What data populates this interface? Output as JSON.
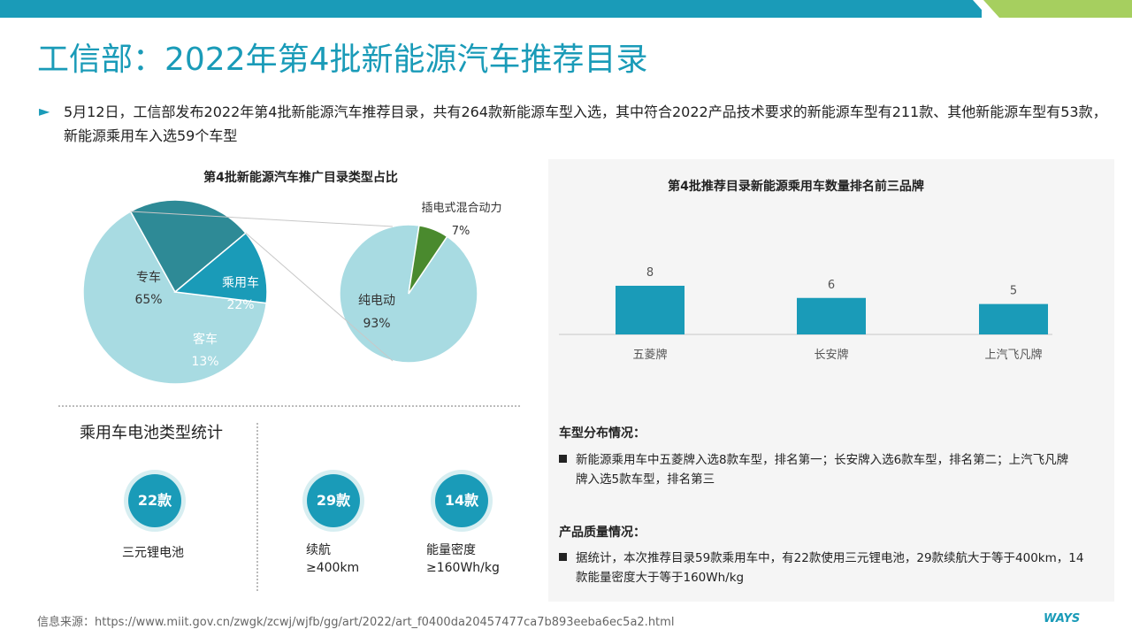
{
  "title": "工信部：2022年第4批新能源汽车推荐目录",
  "intro": "5月12日，工信部发布2022年第4批新能源汽车推荐目录，共有264款新能源车型入选，其中符合2022产品技术要求的新能源车型有211款、其他新能源车型有53款，新能源乘用车入选59个车型",
  "chart_data": [
    {
      "type": "pie",
      "title": "第4批新能源汽车推广目录类型占比",
      "categories": [
        "专车",
        "乘用车",
        "客车"
      ],
      "values": [
        65,
        22,
        13
      ],
      "labels": [
        "65%",
        "22%",
        "13%"
      ],
      "colors": [
        "#a8dbe2",
        "#2e8a96",
        "#1a9bb8"
      ]
    },
    {
      "type": "pie",
      "title": "",
      "categories": [
        "纯电动",
        "插电式混合动力"
      ],
      "values": [
        93,
        7
      ],
      "labels": [
        "93%",
        "7%"
      ],
      "colors": [
        "#a8dbe2",
        "#4a8a2e"
      ]
    },
    {
      "type": "bar",
      "title": "第4批推荐目录新能源乘用车数量排名前三品牌",
      "categories": [
        "五菱牌",
        "长安牌",
        "上汽飞凡牌"
      ],
      "values": [
        8,
        6,
        5
      ],
      "color": "#1a9bb8",
      "ylim": [
        0,
        8
      ]
    }
  ],
  "battery": {
    "title": "乘用车电池类型统计",
    "items": [
      {
        "badge": "22款",
        "line1": "三元锂电池",
        "line2": ""
      },
      {
        "badge": "29款",
        "line1": "续航",
        "line2": "≥400km"
      },
      {
        "badge": "14款",
        "line1": "能量密度",
        "line2": "≥160Wh/kg"
      }
    ]
  },
  "dist": {
    "head": "车型分布情况：",
    "line1": "新能源乘用车中五菱牌入选8款车型，排名第一；长安牌入选6款车型，排名第二；上汽飞凡牌",
    "line2": "牌入选5款车型，排名第三"
  },
  "quality": {
    "head": "产品质量情况：",
    "line1": "据统计，本次推荐目录59款乘用车中，有22款使用三元锂电池，29款续航大于等于400km，14",
    "line2": "款能量密度大于等于160Wh/kg"
  },
  "source": "信息来源：https://www.miit.gov.cn/zwgk/zcwj/wjfb/gg/art/2022/art_f0400da20457477ca7b893eeba6ec5a2.html",
  "logo": "WAYS"
}
